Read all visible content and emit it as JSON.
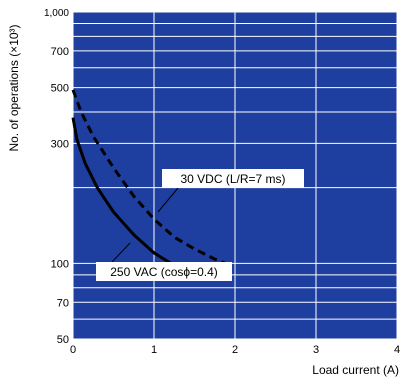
{
  "colors": {
    "plot_background": "#1e3fa0",
    "grid": "#ffffff",
    "curves": "#000000"
  },
  "chart_data": {
    "type": "line",
    "title": "",
    "xlabel": "Load current (A)",
    "ylabel": "No. of operations (×10³)",
    "x_scale": "linear",
    "y_scale": "log",
    "xlim": [
      0,
      4
    ],
    "ylim": [
      50,
      1000
    ],
    "x_ticks": [
      "0",
      "1",
      "2",
      "3",
      "4"
    ],
    "y_ticks": [
      {
        "value": 50,
        "label": "50"
      },
      {
        "value": 70,
        "label": "70"
      },
      {
        "value": 100,
        "label": "100"
      },
      {
        "value": 300,
        "label": "300"
      },
      {
        "value": 500,
        "label": "500"
      },
      {
        "value": 700,
        "label": "700"
      },
      {
        "value": 1000,
        "label": "1,000"
      }
    ],
    "y_gridlines": [
      50,
      60,
      70,
      80,
      90,
      100,
      200,
      300,
      400,
      500,
      600,
      700,
      800,
      900,
      1000
    ],
    "grid": true,
    "series": [
      {
        "name": "30 VDC (L/R=7 ms)",
        "style": "dashed",
        "points": [
          [
            0,
            490
          ],
          [
            0.1,
            400
          ],
          [
            0.25,
            320
          ],
          [
            0.5,
            240
          ],
          [
            0.75,
            185
          ],
          [
            1.0,
            150
          ],
          [
            1.25,
            127
          ],
          [
            1.5,
            114
          ],
          [
            1.75,
            104
          ],
          [
            1.95,
            98
          ]
        ]
      },
      {
        "name": "250 VAC (cosϕ=0.4)",
        "style": "solid",
        "points": [
          [
            0,
            380
          ],
          [
            0.05,
            310
          ],
          [
            0.15,
            250
          ],
          [
            0.3,
            200
          ],
          [
            0.5,
            160
          ],
          [
            0.75,
            130
          ],
          [
            1.0,
            110
          ],
          [
            1.25,
            98
          ]
        ]
      }
    ],
    "annotations": [
      {
        "text": "30 VDC (L/R=7 ms)",
        "series": 0
      },
      {
        "text": "250 VAC (cosϕ=0.4)",
        "series": 1
      }
    ]
  }
}
